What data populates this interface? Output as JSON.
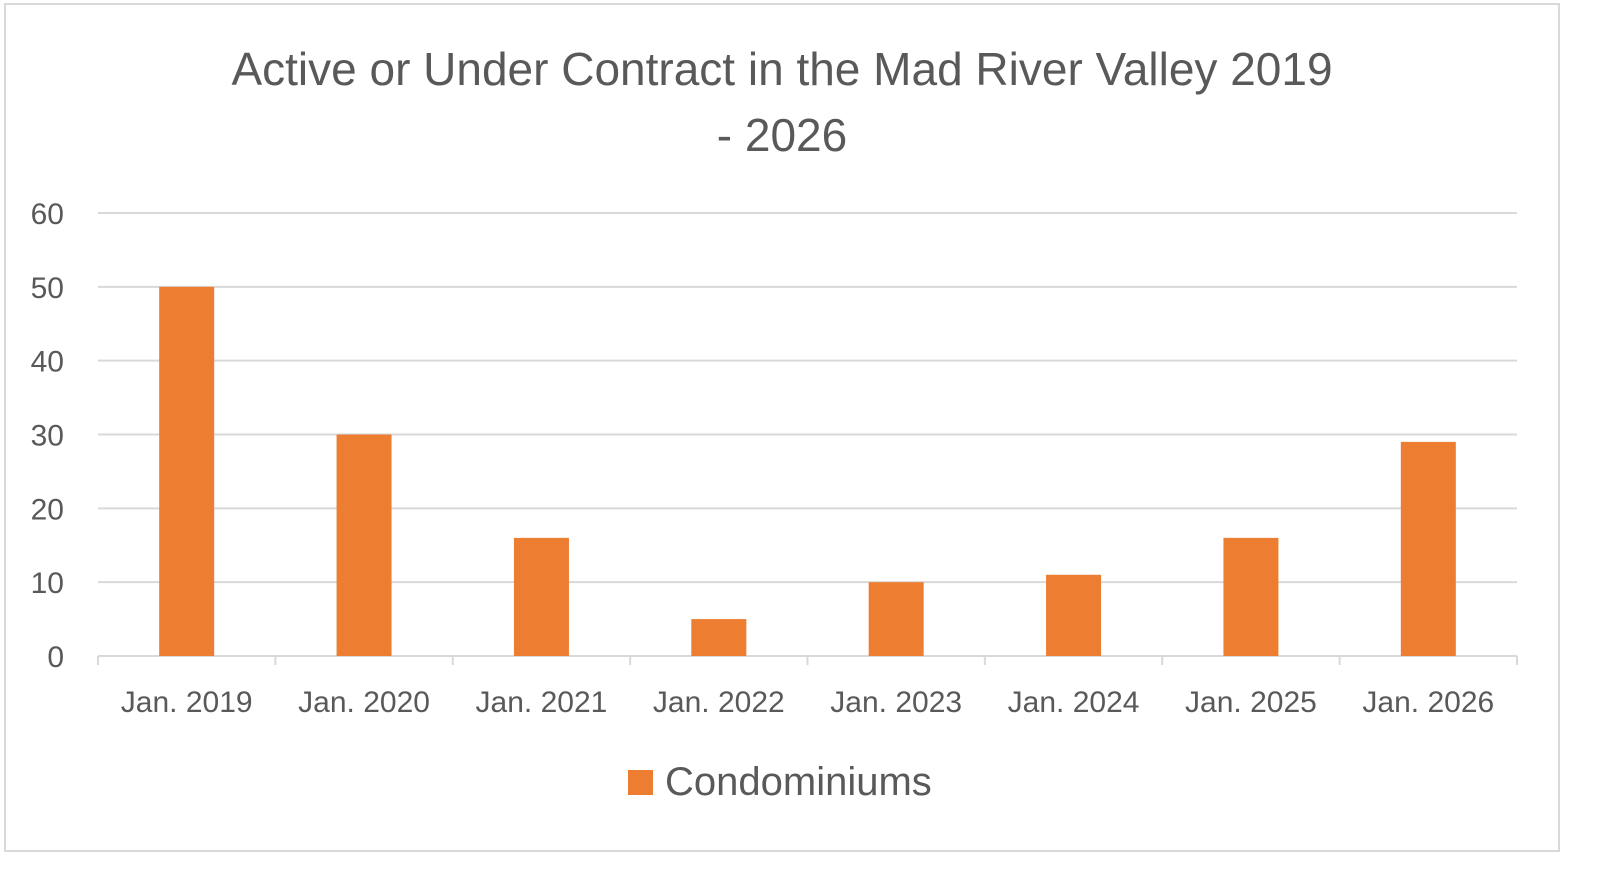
{
  "chart_data": {
    "type": "bar",
    "title": "Active or Under Contract in the Mad River Valley 2019 - 2026",
    "title_lines": [
      "Active or Under Contract in the Mad River Valley 2019",
      "- 2026"
    ],
    "categories": [
      "Jan. 2019",
      "Jan. 2020",
      "Jan. 2021",
      "Jan. 2022",
      "Jan. 2023",
      "Jan. 2024",
      "Jan. 2025",
      "Jan. 2026"
    ],
    "series": [
      {
        "name": "Condominiums",
        "values": [
          50,
          30,
          16,
          5,
          10,
          11,
          16,
          29
        ],
        "color": "#ED7D31"
      }
    ],
    "xlabel": "",
    "ylabel": "",
    "ylim": [
      0,
      60
    ],
    "yticks": [
      0,
      10,
      20,
      30,
      40,
      50,
      60
    ],
    "grid": true,
    "legend": "bottom"
  }
}
